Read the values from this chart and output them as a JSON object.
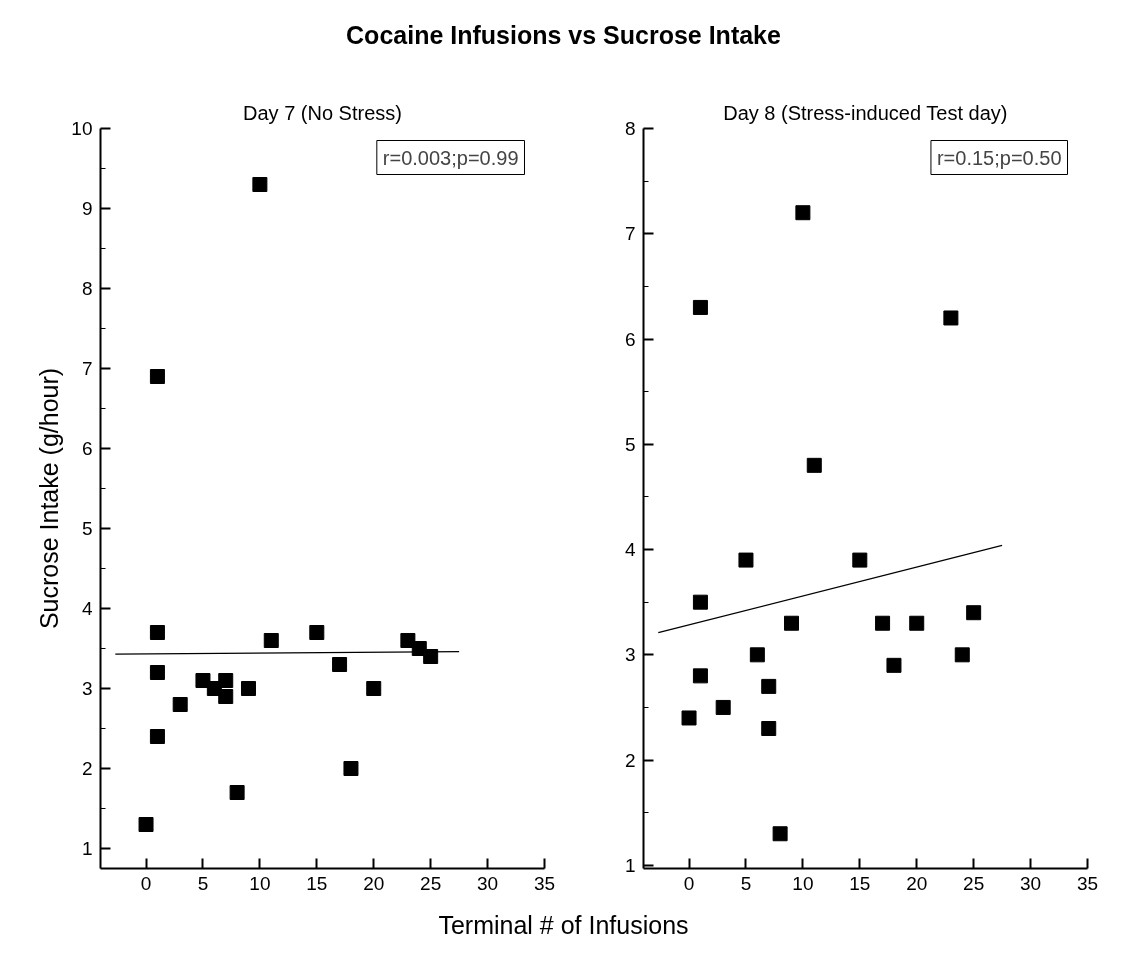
{
  "chart_data": [
    {
      "type": "scatter",
      "title": "Cocaine Infusions vs Sucrose Intake",
      "subtitle": "Day 7 (No Stress)",
      "xlabel": "Terminal # of Infusions",
      "ylabel": "Sucrose Intake (g/hour)",
      "grid": false,
      "xlim": [
        -4,
        35
      ],
      "ylim": [
        0.75,
        10
      ],
      "xticks": [
        0,
        5,
        10,
        15,
        20,
        25,
        30,
        35
      ],
      "yticks": [
        1,
        {
          "value": 1.5,
          "label": null
        },
        2,
        {
          "value": 2.5,
          "label": null
        },
        3,
        {
          "value": 3.5,
          "label": null
        },
        4,
        {
          "value": 4.5,
          "label": null
        },
        5,
        {
          "value": 5.5,
          "label": null
        },
        6,
        {
          "value": 6.5,
          "label": null
        },
        7,
        {
          "value": 7.5,
          "label": null
        },
        8,
        {
          "value": 8.5,
          "label": null
        },
        9,
        {
          "value": 9.5,
          "label": null
        },
        10
      ],
      "annotations": [
        "r=0.003;p=0.99"
      ],
      "series": [
        {
          "marker": "square",
          "color": "#000000",
          "x": [
            0,
            1,
            1,
            1,
            1,
            3,
            5,
            6,
            7,
            7,
            8,
            9,
            10,
            11,
            15,
            17,
            18,
            20,
            23,
            24,
            25
          ],
          "values": [
            1.3,
            6.9,
            3.7,
            3.2,
            2.4,
            2.8,
            3.1,
            3.0,
            3.1,
            2.9,
            1.7,
            3.0,
            9.3,
            3.6,
            3.7,
            3.3,
            2.0,
            3.0,
            3.6,
            3.5,
            3.4
          ]
        },
        {
          "type": "line",
          "color": "#000000",
          "x": [
            -2.7,
            27.5
          ],
          "values": [
            3.43,
            3.46
          ]
        }
      ]
    },
    {
      "type": "scatter",
      "subtitle": "Day 8 (Stress-induced Test day)",
      "grid": false,
      "xlim": [
        -4,
        35
      ],
      "ylim": [
        0.97,
        8
      ],
      "xticks": [
        0,
        5,
        10,
        15,
        20,
        25,
        30,
        35
      ],
      "yticks": [
        1,
        {
          "value": 1.5,
          "label": null
        },
        2,
        {
          "value": 2.5,
          "label": null
        },
        3,
        {
          "value": 3.5,
          "label": null
        },
        4,
        {
          "value": 4.5,
          "label": null
        },
        5,
        {
          "value": 5.5,
          "label": null
        },
        6,
        {
          "value": 6.5,
          "label": null
        },
        7,
        {
          "value": 7.5,
          "label": null
        },
        8
      ],
      "annotations": [
        "r=0.15;p=0.50"
      ],
      "series": [
        {
          "marker": "square",
          "color": "#000000",
          "x": [
            0,
            1,
            1,
            1,
            3,
            5,
            6,
            7,
            7,
            8,
            9,
            10,
            11,
            15,
            17,
            18,
            20,
            23,
            24,
            25
          ],
          "values": [
            2.4,
            6.3,
            3.5,
            2.8,
            2.5,
            3.9,
            3.0,
            2.7,
            2.3,
            1.3,
            3.3,
            7.2,
            4.8,
            3.9,
            3.3,
            2.9,
            3.3,
            6.2,
            3.0,
            3.4
          ]
        },
        {
          "type": "line",
          "color": "#000000",
          "x": [
            -2.7,
            27.5
          ],
          "values": [
            3.21,
            4.04
          ]
        }
      ]
    }
  ]
}
